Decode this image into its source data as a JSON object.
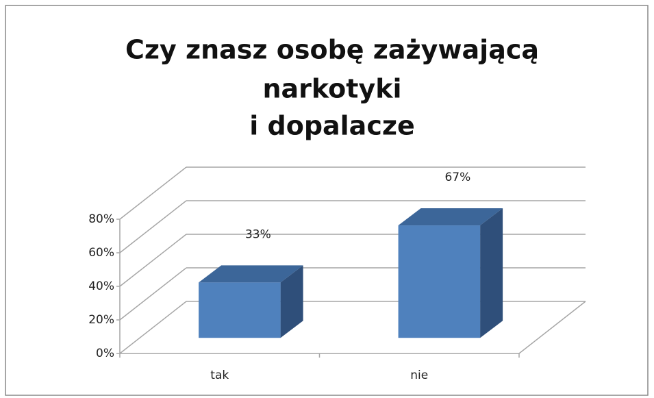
{
  "chart_data": {
    "type": "bar3d",
    "title": [
      "Czy znasz osobę zażywającą",
      "narkotyki",
      "i dopalacze"
    ],
    "categories": [
      "tak",
      "nie"
    ],
    "values": [
      33,
      67
    ],
    "value_labels": [
      "33%",
      "67%"
    ],
    "color": "#4f81bd",
    "ylim": [
      0,
      80
    ],
    "yticks": [
      {
        "value": 0,
        "label": "0%"
      },
      {
        "value": 20,
        "label": "20%"
      },
      {
        "value": 40,
        "label": "40%"
      },
      {
        "value": 60,
        "label": "60%"
      },
      {
        "value": 80,
        "label": "80%"
      }
    ],
    "grid": true
  }
}
